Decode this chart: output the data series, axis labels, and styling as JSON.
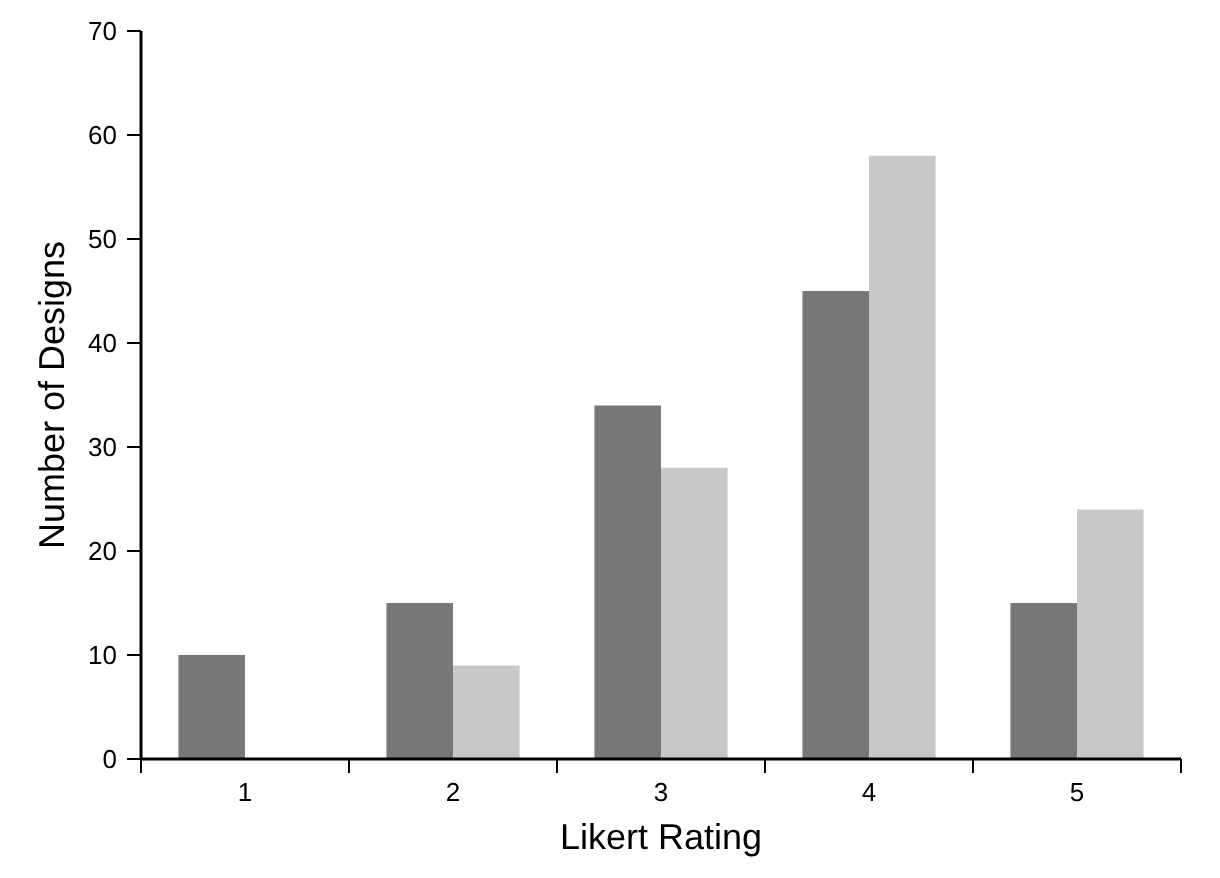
{
  "chart_data": {
    "type": "bar",
    "xlabel": "Likert Rating",
    "ylabel": "Number of Designs",
    "categories": [
      "1",
      "2",
      "3",
      "4",
      "5"
    ],
    "series": [
      {
        "color": "#777777",
        "values": [
          10,
          15,
          34,
          45,
          15
        ]
      },
      {
        "color": "#c8c8c8",
        "values": [
          0,
          9,
          28,
          58,
          24
        ]
      }
    ],
    "ylim": [
      0,
      70
    ],
    "yticks": [
      0,
      10,
      20,
      30,
      40,
      50,
      60,
      70
    ],
    "grid": false
  }
}
